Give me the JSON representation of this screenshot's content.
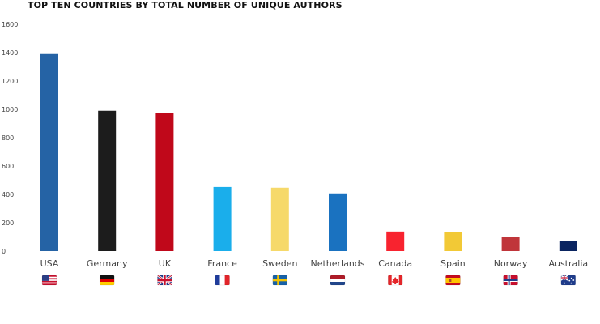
{
  "chart_data": {
    "type": "bar",
    "title": "TOP TEN COUNTRIES BY TOTAL NUMBER OF UNIQUE AUTHORS",
    "xlabel": "",
    "ylabel": "",
    "ylim": [
      0,
      1600
    ],
    "yticks": [
      0,
      200,
      400,
      600,
      800,
      1000,
      1200,
      1400,
      1600
    ],
    "grid": false,
    "categories": [
      "USA",
      "Germany",
      "UK",
      "France",
      "Sweden",
      "Netherlands",
      "Canada",
      "Spain",
      "Norway",
      "Australia"
    ],
    "values": [
      1390,
      990,
      972,
      452,
      447,
      407,
      138,
      136,
      98,
      70
    ],
    "colors": [
      "#2563a5",
      "#1c1c1c",
      "#c0081a",
      "#1aaeeb",
      "#f6d96a",
      "#1a72c0",
      "#f8232f",
      "#f2c936",
      "#c0353a",
      "#0a2460"
    ],
    "flags": [
      "us-flag-icon",
      "de-flag-icon",
      "gb-flag-icon",
      "fr-flag-icon",
      "se-flag-icon",
      "nl-flag-icon",
      "ca-flag-icon",
      "es-flag-icon",
      "no-flag-icon",
      "au-flag-icon"
    ]
  }
}
